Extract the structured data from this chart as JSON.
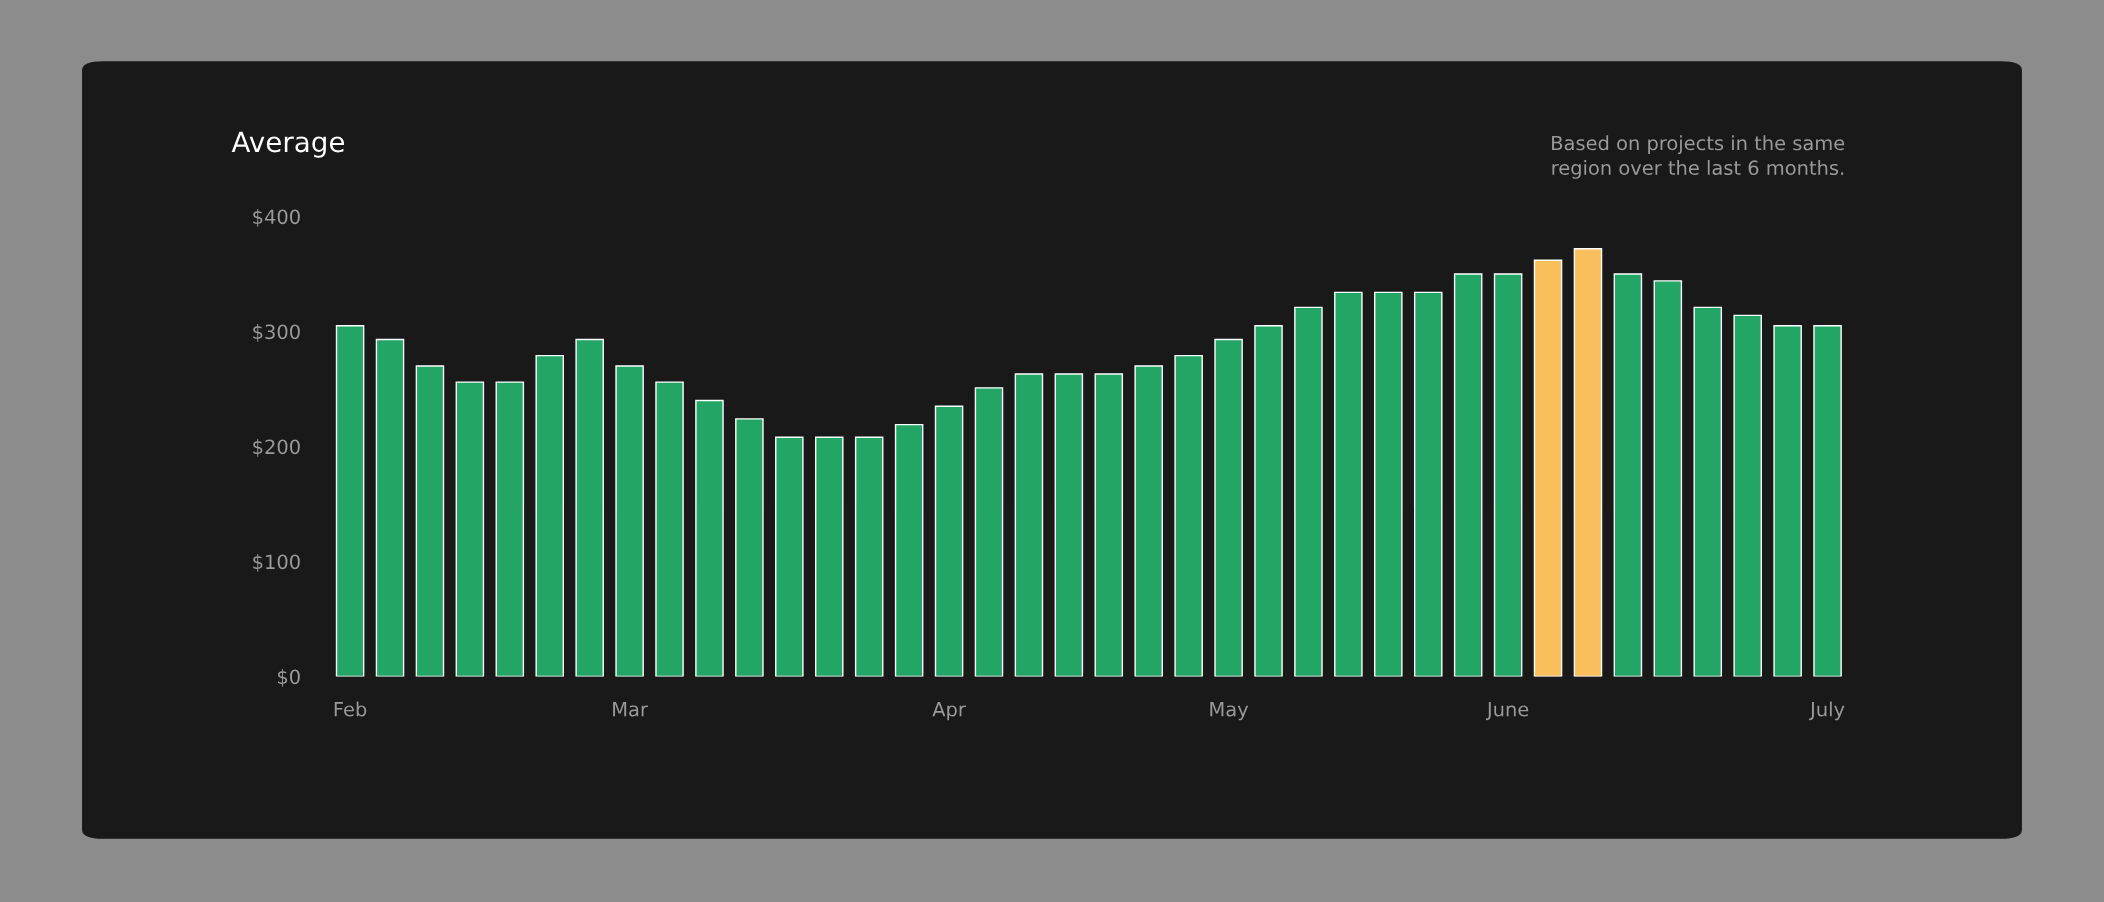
{
  "chart_data": {
    "type": "bar",
    "title": "Average",
    "annotations": [
      "Based on projects in the same\nregion over the last 6 months."
    ],
    "categories": [
      "Feb",
      null,
      null,
      null,
      null,
      null,
      null,
      "Mar",
      null,
      null,
      null,
      null,
      null,
      null,
      null,
      "Apr",
      null,
      null,
      null,
      null,
      null,
      null,
      "May",
      null,
      null,
      null,
      null,
      null,
      null,
      "June",
      null,
      null,
      null,
      null,
      null,
      null,
      null,
      "July"
    ],
    "values": [
      305,
      293,
      270,
      256,
      256,
      279,
      293,
      270,
      256,
      240,
      224,
      208,
      208,
      208,
      219,
      235,
      251,
      263,
      263,
      263,
      270,
      279,
      293,
      305,
      321,
      334,
      334,
      334,
      350,
      350,
      362,
      372,
      350,
      344,
      321,
      314,
      305,
      305
    ],
    "colors": [
      "#22a565",
      "#22a565",
      "#22a565",
      "#22a565",
      "#22a565",
      "#22a565",
      "#22a565",
      "#22a565",
      "#22a565",
      "#22a565",
      "#22a565",
      "#22a565",
      "#22a565",
      "#22a565",
      "#22a565",
      "#22a565",
      "#22a565",
      "#22a565",
      "#22a565",
      "#22a565",
      "#22a565",
      "#22a565",
      "#22a565",
      "#22a565",
      "#22a565",
      "#22a565",
      "#22a565",
      "#22a565",
      "#22a565",
      "#22a565",
      "#fbbe5c",
      "#fbbe5c",
      "#22a565",
      "#22a565",
      "#22a565",
      "#22a565",
      "#22a565",
      "#22a565"
    ],
    "ylim": [
      0,
      400
    ],
    "yticks": [
      {
        "value": 0,
        "label": "$0"
      },
      {
        "value": 100,
        "label": "$100"
      },
      {
        "value": 200,
        "label": "$200"
      },
      {
        "value": 300,
        "label": "$300"
      },
      {
        "value": 400,
        "label": "$400"
      }
    ],
    "grid": false
  }
}
